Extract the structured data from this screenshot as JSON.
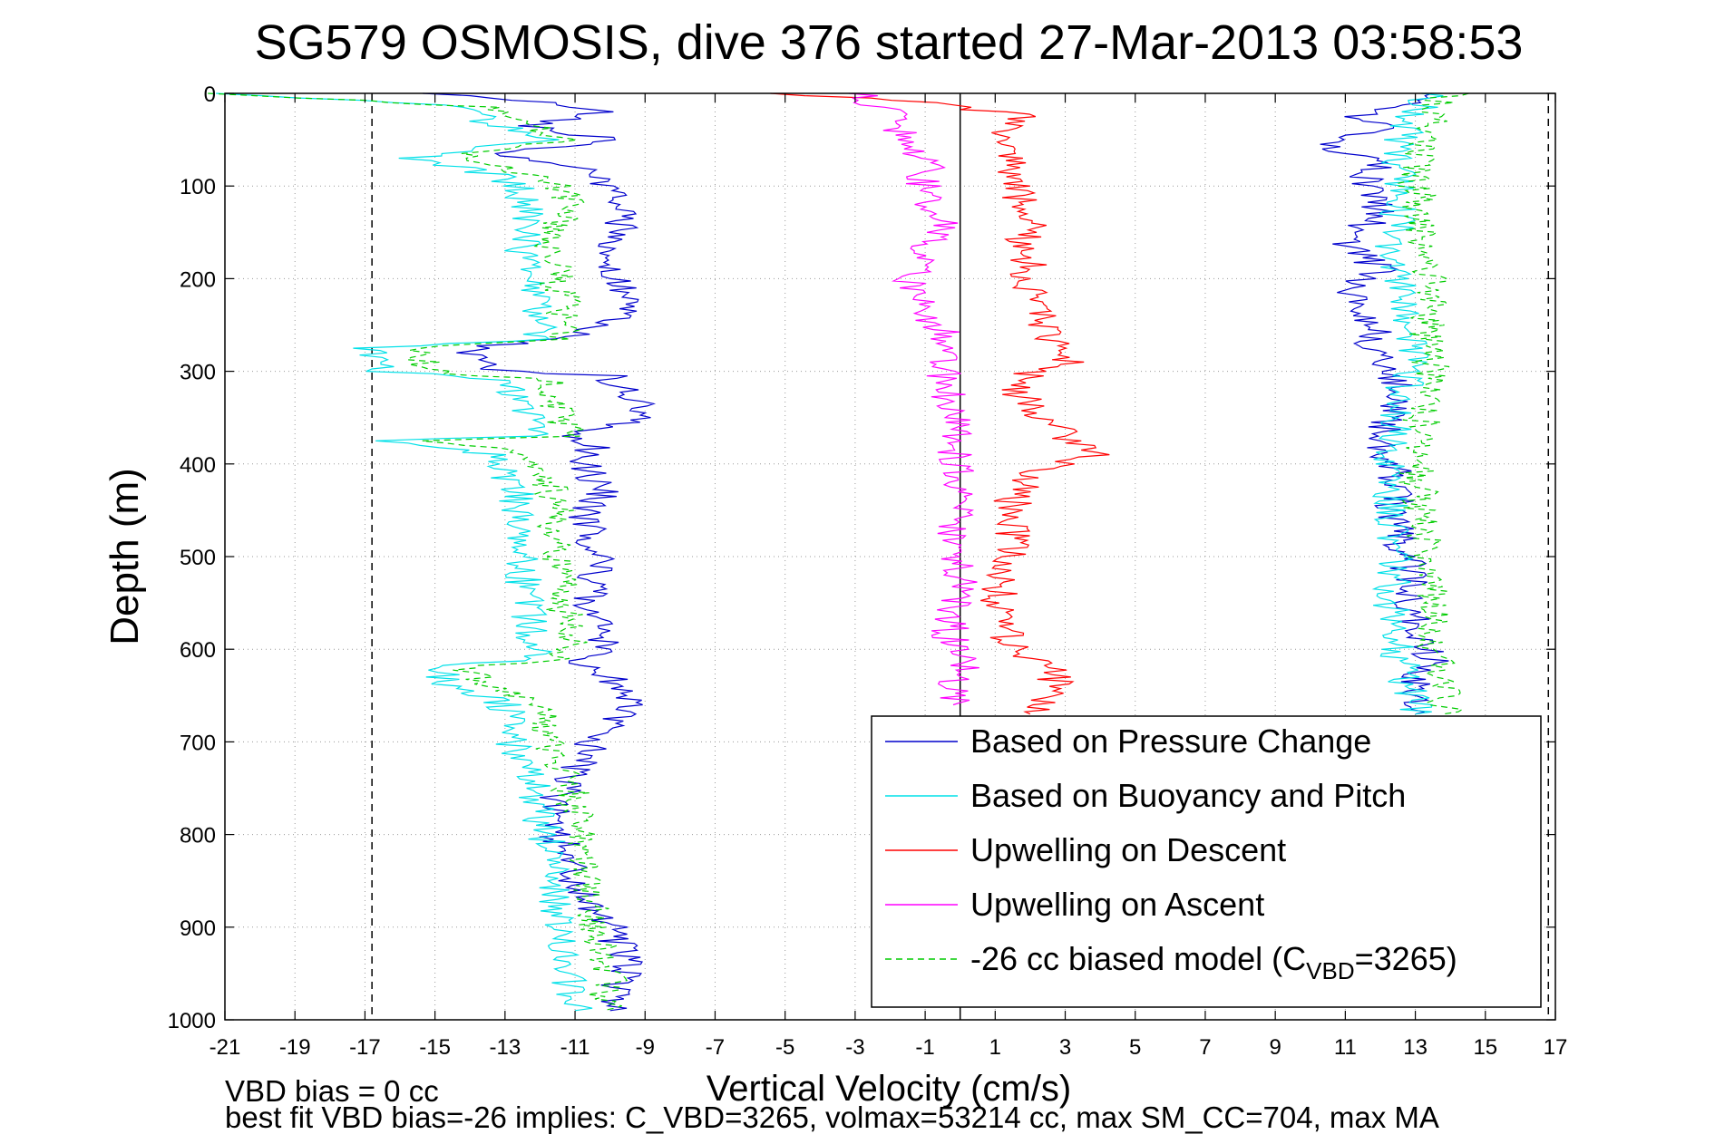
{
  "chart_data": {
    "type": "line",
    "title": "SG579 OSMOSIS, dive 376 started 27-Mar-2013 03:58:53",
    "xlabel": "Vertical Velocity (cm/s)",
    "ylabel": "Depth (m)",
    "xlim": [
      -21,
      17
    ],
    "ylim": [
      0,
      1000
    ],
    "y_reversed": true,
    "grid": true,
    "x_ticks": [
      -21,
      -19,
      -17,
      -15,
      -13,
      -11,
      -9,
      -7,
      -5,
      -3,
      -1,
      1,
      3,
      5,
      7,
      9,
      11,
      13,
      15,
      17
    ],
    "x_tick_labels": [
      "-21",
      "-19",
      "-17",
      "-15",
      "-13",
      "-11",
      "-9",
      "-7",
      "-5",
      "-3",
      "-1",
      "1",
      "3",
      "5",
      "7",
      "9",
      "11",
      "13",
      "15",
      "17"
    ],
    "y_ticks": [
      0,
      100,
      200,
      300,
      400,
      500,
      600,
      700,
      800,
      900,
      1000
    ],
    "y_tick_labels": [
      "0",
      "100",
      "200",
      "300",
      "400",
      "500",
      "600",
      "700",
      "800",
      "900",
      "1000"
    ],
    "reference_lines": [
      {
        "x": -16.8,
        "style": "dashed",
        "color": "#000000"
      },
      {
        "x": 16.8,
        "style": "dashed",
        "color": "#000000"
      },
      {
        "x": 0,
        "style": "solid",
        "color": "#000000"
      }
    ],
    "legend_location": "bottom-right",
    "legend": [
      {
        "text": "Based on Pressure Change",
        "color": "#0000cc",
        "style": "solid"
      },
      {
        "text": "Based on Buoyancy and Pitch",
        "color": "#00e0e8",
        "style": "solid"
      },
      {
        "text": "Upwelling on Descent",
        "color": "#ff0000",
        "style": "solid"
      },
      {
        "text": "Upwelling on Ascent",
        "color": "#ff00ff",
        "style": "solid"
      },
      {
        "text": "-26 cc biased model (C",
        "sub": "VBD",
        "suffix": "=3265)",
        "color": "#00cc00",
        "style": "dashed"
      }
    ],
    "series": [
      {
        "key": "pressure_descent",
        "color": "#0000cc",
        "dash": "",
        "depth": [
          0,
          10,
          20,
          35,
          50,
          65,
          80,
          100,
          130,
          160,
          200,
          240,
          260,
          275,
          290,
          300,
          305,
          320,
          350,
          370,
          380,
          400,
          430,
          460,
          500,
          530,
          560,
          600,
          615,
          630,
          660,
          700,
          730,
          760,
          800,
          850,
          900,
          940,
          990
        ],
        "x": [
          -15,
          -12,
          -10,
          -12.5,
          -10,
          -13,
          -11,
          -10,
          -9.5,
          -10,
          -9.8,
          -9.5,
          -11,
          -13.8,
          -14,
          -13,
          -10,
          -9.5,
          -9,
          -11,
          -10.5,
          -10.8,
          -10.2,
          -10.8,
          -10.2,
          -10.5,
          -10.5,
          -10,
          -11,
          -10,
          -9.5,
          -10.5,
          -11,
          -11.5,
          -11.5,
          -11,
          -10,
          -9.5,
          -10
        ]
      },
      {
        "key": "pressure_ascent",
        "color": "#0000cc",
        "dash": "",
        "depth": [
          0,
          10,
          25,
          40,
          55,
          70,
          100,
          130,
          160,
          190,
          215,
          235,
          255,
          275,
          300,
          340,
          380,
          420,
          460,
          500,
          540,
          580,
          610,
          640,
          670
        ],
        "x": [
          14,
          13,
          11.5,
          12,
          10,
          12,
          11.5,
          12,
          11,
          12,
          11,
          11.5,
          12,
          11.5,
          12.5,
          12.2,
          12,
          12.5,
          12.3,
          12.8,
          12.8,
          13,
          13.5,
          13,
          13
        ]
      },
      {
        "key": "buoyancy_descent",
        "color": "#00e0e8",
        "dash": "",
        "depth": [
          0,
          15,
          30,
          50,
          70,
          90,
          110,
          140,
          170,
          200,
          240,
          265,
          275,
          290,
          300,
          310,
          340,
          370,
          375,
          390,
          420,
          460,
          500,
          540,
          580,
          610,
          620,
          640,
          660,
          700,
          740,
          780,
          820,
          860,
          900,
          950,
          990
        ],
        "x": [
          -21,
          -14,
          -13.5,
          -12,
          -15.5,
          -13,
          -12.5,
          -12.3,
          -12.5,
          -12.2,
          -12,
          -12,
          -16.8,
          -16.5,
          -16.5,
          -12.8,
          -12.5,
          -12.2,
          -16.5,
          -13.2,
          -12.8,
          -12.5,
          -12.6,
          -12.4,
          -12.2,
          -12,
          -15,
          -14.5,
          -13,
          -12.8,
          -12.2,
          -12,
          -11.7,
          -11.5,
          -11.5,
          -11.2,
          -11
        ]
      },
      {
        "key": "buoyancy_ascent",
        "color": "#00e0e8",
        "dash": "",
        "depth": [
          0,
          20,
          60,
          100,
          140,
          180,
          200,
          230,
          260,
          300,
          350,
          400,
          450,
          500,
          550,
          600,
          640,
          670
        ],
        "x": [
          13.5,
          13,
          12.5,
          12.5,
          12.5,
          12.3,
          12.5,
          12.8,
          13,
          12.8,
          12.5,
          12.2,
          12.3,
          12.5,
          12.3,
          12.5,
          12.8,
          13
        ]
      },
      {
        "key": "model_descent",
        "color": "#00cc00",
        "dash": "7,5",
        "depth": [
          0,
          15,
          30,
          50,
          70,
          90,
          110,
          140,
          170,
          200,
          240,
          265,
          275,
          290,
          300,
          310,
          340,
          370,
          375,
          390,
          420,
          460,
          500,
          540,
          580,
          610,
          620,
          640,
          660,
          700,
          740,
          780,
          820,
          860,
          900,
          950,
          990
        ],
        "x": [
          -21,
          -13.5,
          -12.5,
          -11.5,
          -14.5,
          -12,
          -11.2,
          -11.5,
          -11.8,
          -11.5,
          -11.3,
          -11.2,
          -15.8,
          -15.3,
          -15,
          -11.8,
          -11.5,
          -11.2,
          -15.5,
          -12,
          -11.8,
          -11.5,
          -11.6,
          -11.4,
          -11.2,
          -11.2,
          -14,
          -13.5,
          -12,
          -11.8,
          -11.2,
          -11,
          -10.8,
          -10.6,
          -10.5,
          -10,
          -10.2
        ]
      },
      {
        "key": "model_ascent",
        "color": "#00cc00",
        "dash": "7,5",
        "depth": [
          0,
          20,
          60,
          100,
          140,
          180,
          200,
          230,
          260,
          300,
          350,
          400,
          450,
          500,
          550,
          600,
          640,
          670
        ],
        "x": [
          14,
          13.5,
          13.2,
          13,
          13.2,
          13.3,
          13.5,
          13.5,
          13.2,
          13.5,
          13.2,
          13,
          13.2,
          13.3,
          13.5,
          13.5,
          13.8,
          13.8
        ]
      },
      {
        "key": "upwelling_descent",
        "color": "#ff0000",
        "dash": "",
        "depth": [
          0,
          10,
          25,
          45,
          70,
          100,
          130,
          160,
          200,
          230,
          260,
          290,
          310,
          340,
          370,
          390,
          410,
          440,
          480,
          520,
          560,
          600,
          620,
          640,
          670
        ],
        "x": [
          -5,
          -1,
          2,
          1,
          1.5,
          1.5,
          2,
          1.8,
          2,
          2.2,
          2.5,
          3,
          1.5,
          2,
          3,
          4,
          2,
          1.5,
          1.5,
          1.2,
          1,
          1.5,
          2.5,
          2.8,
          2
        ]
      },
      {
        "key": "upwelling_ascent",
        "color": "#ff00ff",
        "dash": "",
        "depth": [
          0,
          20,
          50,
          80,
          110,
          140,
          170,
          200,
          230,
          260,
          290,
          330,
          380,
          430,
          480,
          530,
          580,
          620,
          660
        ],
        "x": [
          -3,
          -2,
          -1.5,
          -1,
          -1,
          -0.5,
          -1,
          -1.5,
          -1,
          -0.5,
          -0.5,
          -0.3,
          -0.2,
          0,
          -0.2,
          0,
          -0.3,
          0,
          -0.2
        ]
      }
    ]
  },
  "footnote": {
    "line1": "VBD bias = 0 cc",
    "line2": "best fit VBD bias=-26 implies: C_VBD=3265, volmax=53214 cc, max SM_CC=704, max MA"
  }
}
